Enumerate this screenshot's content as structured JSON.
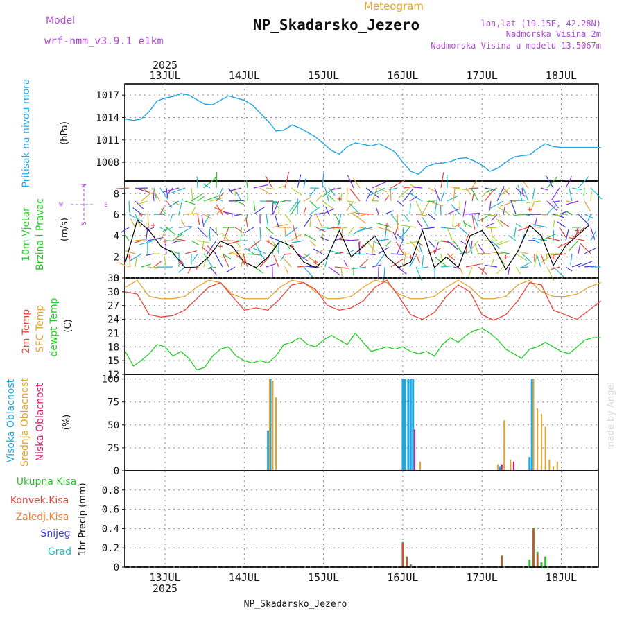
{
  "header": {
    "title": "NP_Skadarsko_Jezero",
    "subtitle": "Meteogram",
    "model_label": "Model",
    "model_name": "wrf-nmm_v3.9.1 e1km",
    "lonlat": "lon,lat (19.15E, 42.28N)",
    "altitude": "Nadmorska Visina 2m",
    "model_altitude": "Nadmorska Visina u modelu 13.5067m",
    "footer": "NP_Skadarsko_Jezero",
    "credit": "made by Angel",
    "year": "2025"
  },
  "colors": {
    "pressure": "#1ea7e6",
    "t2m": "#e8423a",
    "sfc": "#e3a330",
    "dewpt": "#1fcf1f",
    "high_cloud": "#1ea7e6",
    "mid_cloud": "#e3a330",
    "low_cloud": "#e0186c",
    "total_precip": "#2fbf2f",
    "conv_precip": "#e8423a",
    "frozen": "#f07b2a",
    "snow": "#3a3ae0",
    "graupel": "#1fbfbf",
    "model": "#b04ad8",
    "wind_gust": "#e8423a",
    "wind_speed": "#000000"
  },
  "chart_data": [
    {
      "type": "line",
      "panel": "pressure",
      "ylabel_left": "Pritisak na nivou mora",
      "unit": "(hPa)",
      "ylim": [
        1005.5,
        1018.5
      ],
      "yticks": [
        1008,
        1011,
        1014,
        1017
      ],
      "xticks": [
        "13JUL",
        "14JUL",
        "15JUL",
        "16JUL",
        "17JUL",
        "18JUL"
      ],
      "series": [
        {
          "x": [
            0,
            0.1,
            0.2,
            0.3,
            0.4,
            0.5,
            0.6,
            0.7,
            0.8,
            0.9,
            1.0,
            1.1,
            1.2,
            1.3,
            1.4,
            1.5,
            1.6,
            1.7,
            1.8,
            1.9,
            2.0,
            2.1,
            2.2,
            2.3,
            2.4,
            2.5,
            2.6,
            2.7,
            2.8,
            2.9,
            3.0,
            3.1,
            3.2,
            3.3,
            3.4,
            3.5,
            3.6,
            3.7,
            3.8,
            3.9,
            4.0,
            4.1,
            4.2,
            4.3,
            4.4,
            4.5,
            4.6,
            4.7,
            4.8,
            4.9,
            5.0,
            5.1,
            5.2,
            5.3,
            5.4,
            5.5,
            5.6,
            5.7,
            5.8,
            5.9,
            6.0
          ],
          "y": [
            1013.8,
            1013.6,
            1013.8,
            1014.8,
            1016.2,
            1016.6,
            1016.8,
            1017.2,
            1017.0,
            1016.4,
            1015.8,
            1015.7,
            1016.3,
            1016.9,
            1016.6,
            1016.3,
            1015.7,
            1014.6,
            1013.5,
            1012.2,
            1012.3,
            1013.0,
            1012.6,
            1012.0,
            1011.4,
            1010.5,
            1009.6,
            1009.1,
            1010.1,
            1010.6,
            1010.4,
            1010.2,
            1010.5,
            1010.0,
            1009.4,
            1008.0,
            1006.8,
            1006.4,
            1007.4,
            1007.8,
            1007.9,
            1008.1,
            1008.5,
            1008.6,
            1008.2,
            1007.6,
            1006.8,
            1007.2,
            1008.0,
            1008.7,
            1008.9,
            1009.0,
            1009.8,
            1010.5,
            1010.1,
            1010.0,
            1010.0,
            1010.0,
            1010.0,
            1010.0,
            1010.0
          ]
        }
      ]
    },
    {
      "type": "line",
      "panel": "wind",
      "ylabel_left": [
        "10m Vjetar",
        "Brzina i Pravac"
      ],
      "unit": "(m/s)",
      "compass": [
        "W",
        "E",
        "N",
        "S"
      ],
      "ylim": [
        0,
        9.2
      ],
      "yticks": [
        0,
        2,
        4,
        6,
        8
      ],
      "series": [
        {
          "name": "speed",
          "x": [
            0,
            0.15,
            0.3,
            0.45,
            0.6,
            0.75,
            0.9,
            1.05,
            1.2,
            1.35,
            1.5,
            1.65,
            1.8,
            1.95,
            2.1,
            2.25,
            2.4,
            2.55,
            2.7,
            2.85,
            3.0,
            3.15,
            3.3,
            3.45,
            3.6,
            3.75,
            3.9,
            4.05,
            4.2,
            4.35,
            4.5,
            4.65,
            4.8,
            4.95,
            5.1,
            5.25,
            5.4,
            5.55,
            5.7,
            5.85
          ],
          "y": [
            1.5,
            5.5,
            4.5,
            3.0,
            2.4,
            1.0,
            1.0,
            2.0,
            3.5,
            3.0,
            1.5,
            1.0,
            2.0,
            3.5,
            3.0,
            1.5,
            1.0,
            2.0,
            4.5,
            2.0,
            3.0,
            4.0,
            2.0,
            1.0,
            1.5,
            4.5,
            1.0,
            2.0,
            1.0,
            4.0,
            4.5,
            3.0,
            0.8,
            2.5,
            5.0,
            4.0,
            1.2,
            3.0,
            4.0,
            5.0
          ]
        },
        {
          "name": "gust",
          "x": [
            0.05,
            0.2,
            0.35,
            0.5,
            0.7,
            0.9,
            1.2,
            1.5,
            1.8,
            2.1,
            2.4,
            2.7,
            3.0,
            3.3,
            3.6,
            3.9,
            4.2,
            4.5,
            4.8,
            5.1,
            5.4,
            5.7
          ],
          "y": [
            2.0,
            6.0,
            5.0,
            3.5,
            1.5,
            1.0,
            3.0,
            1.5,
            3.5,
            3.0,
            1.5,
            7.5,
            3.0,
            5.0,
            2.0,
            2.5,
            5.0,
            5.5,
            2.0,
            6.5,
            2.0,
            4.5
          ]
        }
      ]
    },
    {
      "type": "line",
      "panel": "temperature",
      "ylabel_left": [
        "2m Temp",
        "SFC Temp",
        "dewpt Temp"
      ],
      "unit": "(C)",
      "ylim": [
        12,
        33
      ],
      "yticks": [
        12,
        15,
        18,
        21,
        24,
        27,
        30,
        33
      ],
      "series": [
        {
          "name": "2m",
          "x": [
            0,
            0.15,
            0.3,
            0.45,
            0.6,
            0.75,
            0.9,
            1.05,
            1.2,
            1.35,
            1.5,
            1.65,
            1.8,
            1.95,
            2.1,
            2.25,
            2.4,
            2.55,
            2.7,
            2.85,
            3.0,
            3.15,
            3.3,
            3.45,
            3.6,
            3.75,
            3.9,
            4.05,
            4.2,
            4.35,
            4.5,
            4.65,
            4.8,
            4.95,
            5.1,
            5.25,
            5.4,
            5.55,
            5.7,
            5.85,
            6.0
          ],
          "y": [
            30,
            29.5,
            25,
            24.5,
            24.8,
            26,
            28.5,
            31,
            32,
            29,
            26,
            26.5,
            26,
            28.5,
            31.5,
            32,
            30.5,
            27,
            26,
            26.5,
            28,
            31,
            32.5,
            29,
            25,
            24,
            25.5,
            29,
            31.5,
            30,
            25,
            23.8,
            25,
            28,
            32,
            31.5,
            26,
            25,
            24,
            26,
            28
          ]
        },
        {
          "name": "sfc",
          "x": [
            0,
            0.15,
            0.3,
            0.45,
            0.6,
            0.75,
            0.9,
            1.05,
            1.2,
            1.35,
            1.5,
            1.65,
            1.8,
            1.95,
            2.1,
            2.25,
            2.4,
            2.55,
            2.7,
            2.85,
            3.0,
            3.15,
            3.3,
            3.45,
            3.6,
            3.75,
            3.9,
            4.05,
            4.2,
            4.35,
            4.5,
            4.65,
            4.8,
            4.95,
            5.1,
            5.25,
            5.4,
            5.55,
            5.7,
            5.85,
            6.0
          ],
          "y": [
            31,
            32.5,
            29,
            28.5,
            28.5,
            29,
            31,
            32.5,
            32,
            29.5,
            28.5,
            28.5,
            28.5,
            31,
            32.5,
            32,
            30,
            28.5,
            28.5,
            29,
            31,
            32.5,
            32,
            29.5,
            28.5,
            28.5,
            29,
            31,
            32.5,
            31,
            28.5,
            28.5,
            29,
            31.5,
            32.5,
            30,
            29,
            29,
            29.5,
            31,
            32
          ]
        },
        {
          "name": "dewpt",
          "x": [
            0,
            0.1,
            0.2,
            0.3,
            0.4,
            0.5,
            0.6,
            0.7,
            0.8,
            0.9,
            1.0,
            1.1,
            1.2,
            1.3,
            1.4,
            1.5,
            1.6,
            1.7,
            1.8,
            1.9,
            2.0,
            2.1,
            2.2,
            2.3,
            2.4,
            2.5,
            2.6,
            2.7,
            2.8,
            2.9,
            3.0,
            3.1,
            3.2,
            3.3,
            3.4,
            3.5,
            3.6,
            3.7,
            3.8,
            3.9,
            4.0,
            4.1,
            4.2,
            4.3,
            4.4,
            4.5,
            4.6,
            4.7,
            4.8,
            4.9,
            5.0,
            5.1,
            5.2,
            5.3,
            5.4,
            5.5,
            5.6,
            5.7,
            5.8,
            5.9,
            6.0
          ],
          "y": [
            17,
            13.8,
            15,
            16.5,
            18.5,
            18,
            16,
            17,
            15.5,
            13,
            13.5,
            16,
            17.5,
            18,
            16,
            15,
            14.5,
            15,
            14.5,
            16,
            18.5,
            19,
            20,
            18.5,
            18,
            19.5,
            20.5,
            19.5,
            18.5,
            21,
            19,
            17,
            17.5,
            18,
            17.5,
            18,
            17,
            16.5,
            17,
            16,
            18.5,
            20,
            19,
            20.5,
            21.5,
            22,
            21,
            19.5,
            17.5,
            16.5,
            15.5,
            17.5,
            18,
            19,
            18,
            17,
            16.5,
            18,
            19.5,
            20,
            20
          ]
        }
      ]
    },
    {
      "type": "bar",
      "panel": "cloud",
      "ylabel_left": [
        "Visoka Oblacnost",
        "Srednja Oblacnost",
        "Niska Oblacnost"
      ],
      "unit": "(%)",
      "ylim": [
        0,
        105
      ],
      "yticks": [
        0,
        25,
        50,
        75,
        100
      ],
      "series": [
        {
          "name": "high",
          "x": [
            1.8,
            1.83,
            3.5,
            3.53,
            3.57,
            3.6,
            3.63,
            4.73,
            5.1,
            5.13
          ],
          "y": [
            44,
            100,
            100,
            100,
            100,
            100,
            100,
            5,
            15,
            100
          ]
        },
        {
          "name": "mid",
          "x": [
            1.82,
            1.86,
            1.9,
            3.72,
            4.7,
            4.78,
            4.86,
            5.15,
            5.2,
            5.25,
            5.3,
            5.35,
            5.4,
            5.45
          ],
          "y": [
            100,
            98,
            80,
            10,
            7,
            55,
            12,
            100,
            68,
            62,
            48,
            12,
            5,
            10
          ]
        },
        {
          "name": "low",
          "x": [
            3.65,
            4.75,
            4.9
          ],
          "y": [
            45,
            7,
            10
          ]
        }
      ]
    },
    {
      "type": "bar",
      "panel": "precip",
      "ylabel_left": [
        "Ukupna Kisa",
        "Konvek.Kisa",
        "Zaledj.Kisa",
        "Snijeg",
        "Grad"
      ],
      "unit": "1hr Precip (mm)",
      "ylim": [
        0,
        1.0
      ],
      "yticks": [
        0,
        0.2,
        0.4,
        0.6,
        0.8
      ],
      "series": [
        {
          "name": "total",
          "x": [
            3.5,
            3.55,
            3.6,
            4.75,
            5.1,
            5.15,
            5.2,
            5.25,
            5.3
          ],
          "y": [
            0.26,
            0.11,
            0.03,
            0.12,
            0.08,
            0.41,
            0.16,
            0.05,
            0.11
          ]
        },
        {
          "name": "convective",
          "x": [
            3.5,
            3.55,
            3.6,
            4.75,
            5.15,
            5.2
          ],
          "y": [
            0.25,
            0.1,
            0.03,
            0.12,
            0.4,
            0.14
          ]
        }
      ]
    }
  ]
}
